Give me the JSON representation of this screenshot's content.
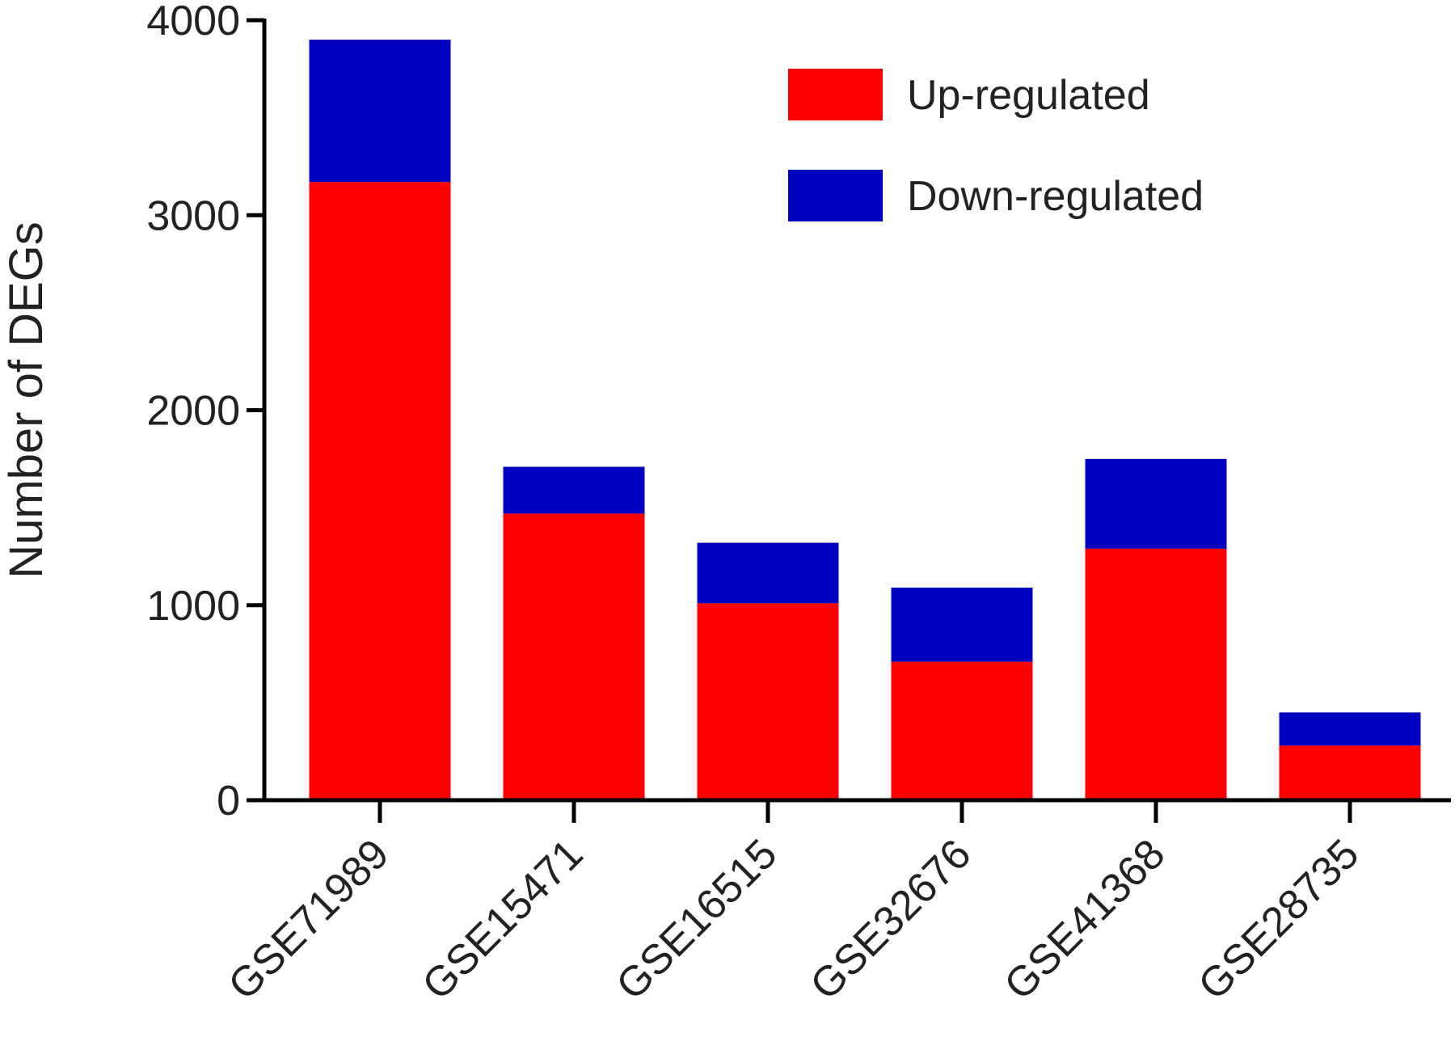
{
  "chart_data": {
    "type": "bar",
    "stacked": true,
    "title": "",
    "xlabel": "",
    "ylabel": "Number of DEGs",
    "categories": [
      "GSE71989",
      "GSE15471",
      "GSE16515",
      "GSE32676",
      "GSE41368",
      "GSE28735"
    ],
    "series": [
      {
        "name": "Up-regulated",
        "color": "#ff0000",
        "values": [
          3170,
          1470,
          1010,
          710,
          1290,
          280
        ]
      },
      {
        "name": "Down-regulated",
        "color": "#0000c0",
        "values": [
          730,
          240,
          310,
          380,
          460,
          170
        ]
      }
    ],
    "ylim": [
      0,
      4000
    ],
    "yticks": [
      "0",
      "1000",
      "2000",
      "3000",
      "4000"
    ],
    "ytick_values": [
      0,
      1000,
      2000,
      3000,
      4000
    ],
    "grid": false,
    "legend_position": "top-right"
  }
}
